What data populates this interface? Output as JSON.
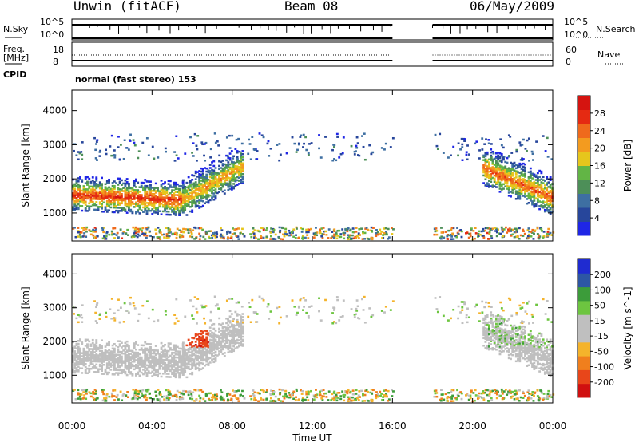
{
  "header": {
    "station": "Unwin (fitACF)",
    "beam": "Beam 08",
    "date": "06/May/2009"
  },
  "side_labels": {
    "nsky": "N.Sky",
    "nsearch": "N.Search",
    "freq": "Freq.",
    "freq_unit": "[MHz]",
    "nave": "Nave",
    "cpid": "CPID",
    "nsky_ticks": [
      "10^5",
      "10^0"
    ],
    "nsearch_ticks": [
      "10^5",
      "10^0"
    ],
    "freq_ticks": [
      "18",
      "8"
    ],
    "nave_ticks": [
      "60",
      "0"
    ]
  },
  "cpid_text": "normal (fast stereo) 153",
  "colors": {
    "power_scale": [
      "#1f26e6",
      "#27469b",
      "#3e6fa2",
      "#4d8f58",
      "#62b545",
      "#e6c61c",
      "#f39b1f",
      "#ef6a1c",
      "#e52a12",
      "#d51410"
    ],
    "velocity_scale": [
      "#d01010",
      "#e8461a",
      "#f07f1d",
      "#f4b32b",
      "#bfbfbf",
      "#bfbfbf",
      "#6dc540",
      "#3c9c3a",
      "#2d56a4",
      "#1f2bd0"
    ]
  },
  "chart_data": [
    {
      "type": "heatmap",
      "name": "power",
      "ylabel": "Slant Range [km]",
      "ylim": [
        180,
        4600
      ],
      "y_ticks": [
        1000,
        2000,
        3000,
        4000
      ],
      "colorbar_label": "Power [dB]",
      "colorbar_ticks": [
        4,
        8,
        12,
        16,
        20,
        24,
        28
      ],
      "clim": [
        0,
        30
      ],
      "echo_bands": [
        {
          "t_start": 0.0,
          "t_end": 5.5,
          "range_start": 1500,
          "range_end": 1350,
          "width": 450,
          "peak_db": 26
        },
        {
          "t_start": 5.5,
          "t_end": 8.5,
          "range_start": 1350,
          "range_end": 2350,
          "width": 500,
          "peak_db": 20
        },
        {
          "t_start": 20.5,
          "t_end": 24.0,
          "range_start": 2300,
          "range_end": 1400,
          "width": 500,
          "peak_db": 24
        }
      ]
    },
    {
      "type": "heatmap",
      "name": "velocity",
      "ylabel": "Slant Range [km]",
      "ylim": [
        180,
        4600
      ],
      "y_ticks": [
        1000,
        2000,
        3000,
        4000
      ],
      "colorbar_label": "Velocity [m s^-1]",
      "colorbar_ticks": [
        -200,
        -100,
        -50,
        -15,
        15,
        50,
        100,
        200
      ],
      "clim": [
        -250,
        250
      ]
    }
  ],
  "x_axis": {
    "label": "Time UT",
    "ticks": [
      "00:00",
      "04:00",
      "08:00",
      "12:00",
      "16:00",
      "20:00",
      "00:00"
    ],
    "xlim_hours": [
      0,
      24
    ],
    "data_gap_hours": [
      16.0,
      18.0
    ]
  }
}
